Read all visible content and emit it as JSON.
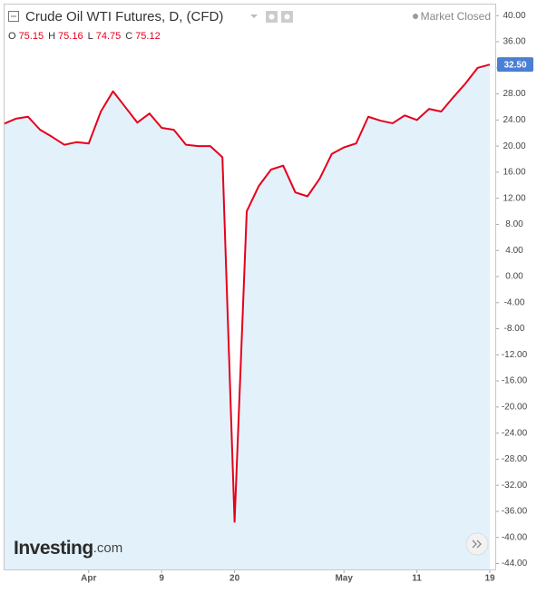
{
  "chart_data": {
    "type": "line",
    "title": "Crude Oil WTI Futures, D, (CFD)",
    "ohlc": [
      {
        "label": "O",
        "value": "75.15"
      },
      {
        "label": "H",
        "value": "75.16"
      },
      {
        "label": "L",
        "value": "74.75"
      },
      {
        "label": "C",
        "value": "75.12"
      }
    ],
    "status": "Market Closed",
    "brand": "Investing",
    "brand_suffix": ".com",
    "price_tag": "32.50",
    "categories": [
      null,
      null,
      null,
      null,
      null,
      null,
      null,
      "Apr",
      null,
      null,
      null,
      null,
      null,
      "9",
      null,
      null,
      null,
      null,
      null,
      "20",
      null,
      null,
      null,
      null,
      null,
      null,
      null,
      null,
      "May",
      null,
      null,
      null,
      null,
      null,
      "11",
      null,
      null,
      null,
      null,
      null,
      "19"
    ],
    "series": [
      {
        "color": "#e5001c",
        "fill": "#e3f1fb",
        "values": [
          23.4,
          24.2,
          24.5,
          22.5,
          21.4,
          20.2,
          20.6,
          20.4,
          25.3,
          28.4,
          26.0,
          23.6,
          25.0,
          22.8,
          22.5,
          20.2,
          20.0,
          20.0,
          18.3,
          -37.6,
          10.0,
          13.9,
          16.4,
          17.0,
          12.9,
          12.3,
          15.0,
          18.8,
          19.8,
          20.4,
          24.5,
          23.9,
          23.5,
          24.7,
          24.0,
          25.7,
          25.3,
          27.5,
          29.6,
          32.0,
          32.5
        ]
      }
    ],
    "ylim": [
      -44.9,
      41.7
    ],
    "yticks": [
      {
        "value": 40,
        "label": "40.00"
      },
      {
        "value": 36,
        "label": "36.00"
      },
      {
        "value": 32,
        "label": "32.00"
      },
      {
        "value": 28,
        "label": "28.00"
      },
      {
        "value": 24,
        "label": "24.00"
      },
      {
        "value": 20,
        "label": "20.00"
      },
      {
        "value": 16,
        "label": "16.00"
      },
      {
        "value": 12,
        "label": "12.00"
      },
      {
        "value": 8,
        "label": "8.00"
      },
      {
        "value": 4,
        "label": "4.00"
      },
      {
        "value": 0,
        "label": "0.00"
      },
      {
        "value": -4,
        "label": "-4.00"
      },
      {
        "value": -8,
        "label": "-8.00"
      },
      {
        "value": -12,
        "label": "-12.00"
      },
      {
        "value": -16,
        "label": "-16.00"
      },
      {
        "value": -20,
        "label": "-20.00"
      },
      {
        "value": -24,
        "label": "-24.00"
      },
      {
        "value": -28,
        "label": "-28.00"
      },
      {
        "value": -32,
        "label": "-32.00"
      },
      {
        "value": -36,
        "label": "-36.00"
      },
      {
        "value": -40,
        "label": "-40.00"
      },
      {
        "value": -44,
        "label": "-44.00"
      }
    ]
  }
}
